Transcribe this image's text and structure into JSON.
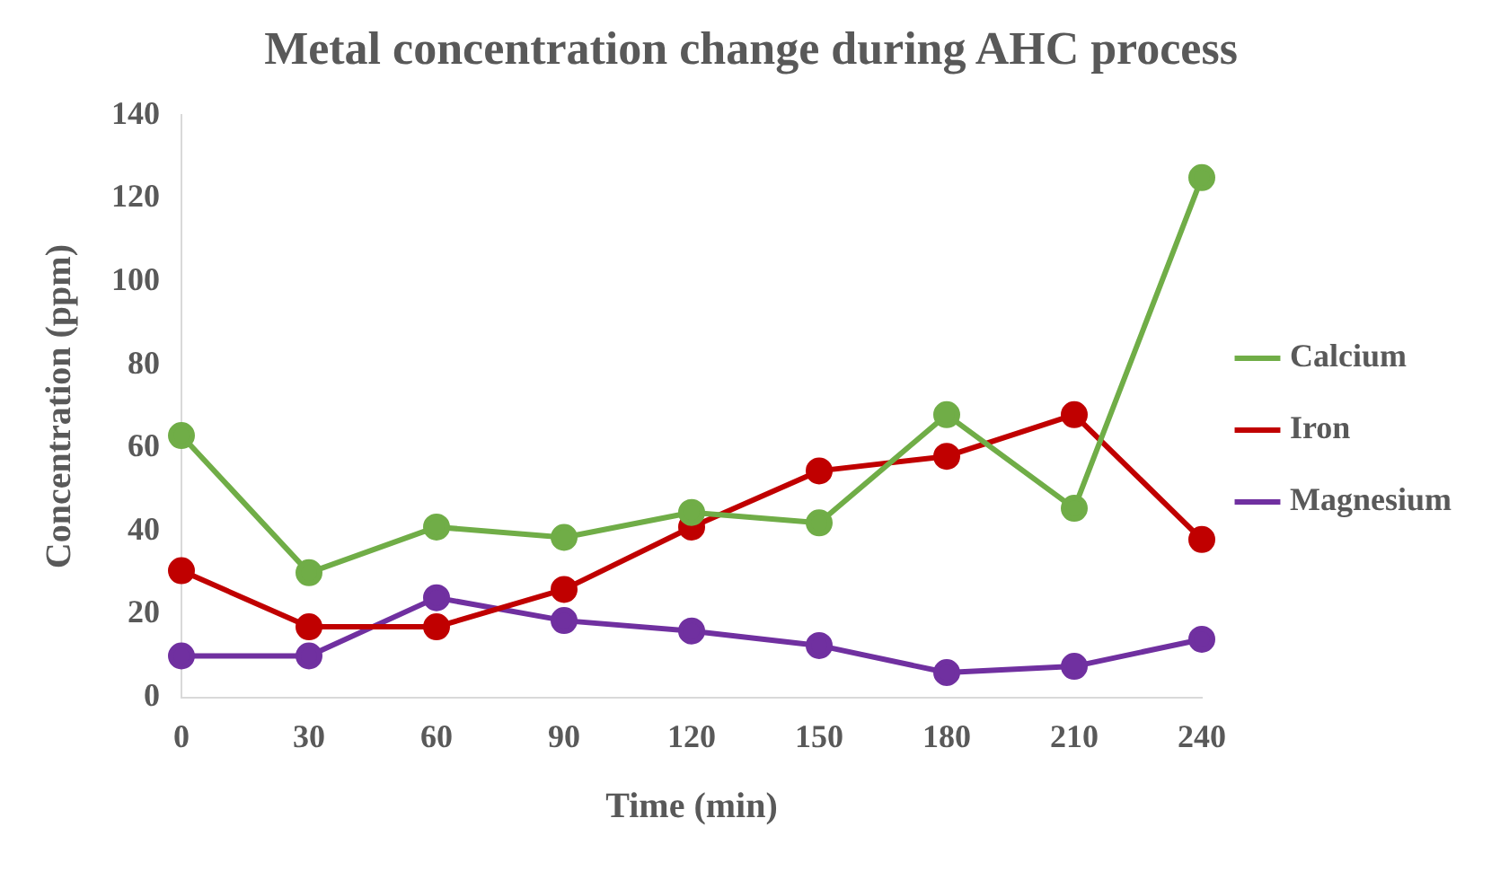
{
  "chart_data": {
    "type": "line",
    "title": "Metal concentration change during AHC process",
    "xlabel": "Time (min)",
    "ylabel": "Concentration (ppm)",
    "categories": [
      "0",
      "30",
      "60",
      "90",
      "120",
      "150",
      "180",
      "210",
      "240"
    ],
    "series": [
      {
        "name": "Calcium",
        "color": "#70ad47",
        "values": [
          63,
          30,
          41,
          38.5,
          44.5,
          42,
          68,
          45.5,
          125
        ]
      },
      {
        "name": "Iron",
        "color": "#c00000",
        "values": [
          30.5,
          17,
          17,
          26,
          41,
          54.5,
          58,
          68,
          38
        ]
      },
      {
        "name": "Magnesium",
        "color": "#7030a0",
        "values": [
          10,
          10,
          24,
          18.5,
          16,
          12.5,
          6,
          7.5,
          14
        ]
      }
    ],
    "ylim": [
      0,
      140
    ],
    "yticks": [
      0,
      20,
      40,
      60,
      80,
      100,
      120,
      140
    ],
    "grid": false,
    "legend": "right",
    "marker": "circle",
    "line_style": "solid"
  }
}
